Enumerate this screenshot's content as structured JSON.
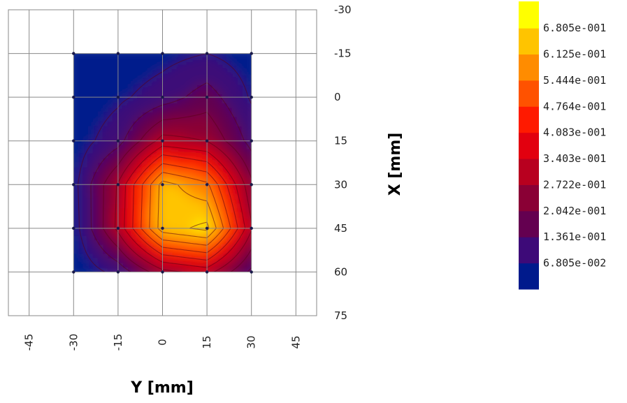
{
  "chart_data": {
    "type": "heatmap",
    "title": "",
    "xlabel": "Y [mm]",
    "ylabel": "X [mm]",
    "x_ticks": [
      -45,
      -30,
      -15,
      0,
      15,
      30,
      45
    ],
    "x_tick_labels": [
      "-45",
      "-30",
      "-15",
      "0",
      "15",
      "30",
      "45"
    ],
    "xlim": [
      -52,
      52
    ],
    "y_ticks": [
      -30,
      -15,
      0,
      15,
      30,
      45,
      60,
      75
    ],
    "y_tick_labels": [
      "-30",
      "-15",
      "0",
      "15",
      "30",
      "45",
      "60",
      "75"
    ],
    "ylim": [
      -30,
      75
    ],
    "y_axis_inverted": true,
    "grid": true,
    "x": [
      -30,
      -15,
      0,
      15,
      30
    ],
    "y": [
      -15,
      0,
      15,
      30,
      45,
      60
    ],
    "z": [
      [
        0.012,
        0.025,
        0.045,
        0.068,
        0.035
      ],
      [
        0.018,
        0.055,
        0.1,
        0.17,
        0.06
      ],
      [
        0.03,
        0.11,
        0.3,
        0.27,
        0.11
      ],
      [
        0.045,
        0.28,
        0.64,
        0.56,
        0.22
      ],
      [
        0.035,
        0.29,
        0.65,
        0.7,
        0.28
      ],
      [
        0.015,
        0.09,
        0.25,
        0.3,
        0.12
      ]
    ],
    "colorbar": {
      "levels": [
        0,
        0.06805,
        0.1361,
        0.2042,
        0.2722,
        0.3403,
        0.4083,
        0.4764,
        0.5444,
        0.6125,
        0.6805,
        0.75
      ],
      "labels": [
        "6.805e-001",
        "6.125e-001",
        "5.444e-001",
        "4.764e-001",
        "4.083e-001",
        "3.403e-001",
        "2.722e-001",
        "2.042e-001",
        "1.361e-001",
        "6.805e-002"
      ],
      "colors": [
        "#001a8c",
        "#3d0a78",
        "#640050",
        "#8a0035",
        "#b8001f",
        "#e2000f",
        "#ff1a00",
        "#ff5200",
        "#ff8c00",
        "#ffc400",
        "#ffff00"
      ]
    }
  }
}
